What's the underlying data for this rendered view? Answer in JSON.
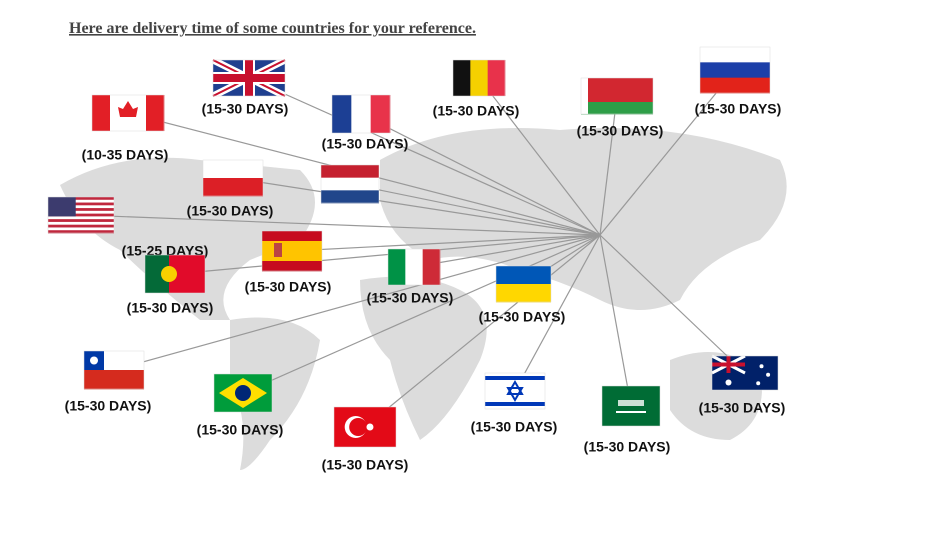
{
  "title": "Here are delivery time of  some countries for your reference.",
  "countries": [
    {
      "label": "(15-30 DAYS)"
    },
    {
      "label": "(15-30 DAYS)"
    },
    {
      "label": "(15-30 DAYS)"
    },
    {
      "label": "(15-30 DAYS)"
    },
    {
      "label": "(10-35 DAYS)"
    },
    {
      "label": "(15-30 DAYS)"
    },
    {
      "label": "(15-30 DAYS)"
    },
    {
      "label": "(15-25 DAYS)"
    },
    {
      "label": "(15-30 DAYS)"
    },
    {
      "label": "(15-30 DAYS)"
    },
    {
      "label": "(15-30 DAYS)"
    },
    {
      "label": "(15-30 DAYS)"
    },
    {
      "label": "(15-30 DAYS)"
    },
    {
      "label": "(15-30 DAYS)"
    },
    {
      "label": "(15-30 DAYS)"
    },
    {
      "label": "(15-30 DAYS)"
    },
    {
      "label": "(15-30 DAYS)"
    },
    {
      "label": "(15-30 DAYS)"
    }
  ]
}
